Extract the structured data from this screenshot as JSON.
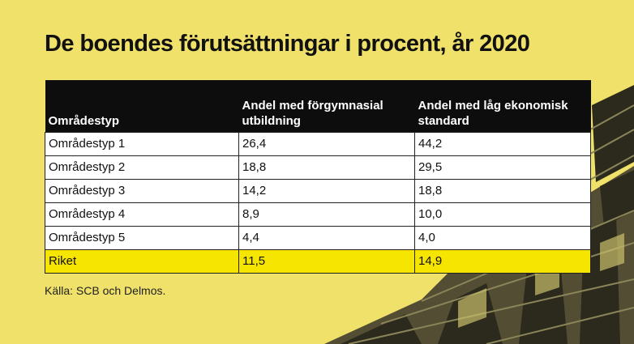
{
  "chart_data": {
    "type": "table",
    "title": "De boendes förutsättningar i procent, år 2020",
    "columns": [
      "Områdestyp",
      "Andel med förgymnasial utbildning",
      "Andel med låg ekonomisk standard"
    ],
    "rows": [
      [
        "Områdestyp 1",
        "26,4",
        "44,2"
      ],
      [
        "Områdestyp 2",
        "18,8",
        "29,5"
      ],
      [
        "Områdestyp 3",
        "14,2",
        "18,8"
      ],
      [
        "Områdestyp 4",
        "8,9",
        "10,0"
      ],
      [
        "Områdestyp 5",
        "4,4",
        "4,0"
      ]
    ],
    "total_row": [
      "Riket",
      "11,5",
      "14,9"
    ],
    "source": "Källa: SCB och Delmos."
  },
  "colors": {
    "background": "#efe169",
    "header_background": "#0d0d0d",
    "total_row_highlight": "#f6e500",
    "cell_background": "#ffffff"
  }
}
